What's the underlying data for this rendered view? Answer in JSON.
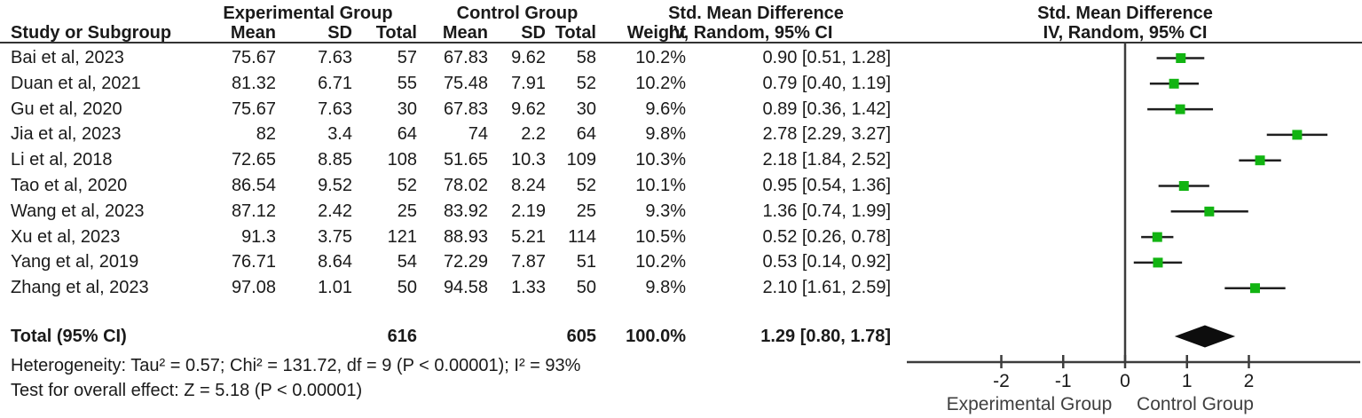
{
  "header": {
    "study_col": "Study or Subgroup",
    "group_experimental": "Experimental Group",
    "group_control": "Control Group",
    "mean": "Mean",
    "sd": "SD",
    "total": "Total",
    "weight": "Weight",
    "smd_title": "Std. Mean Difference",
    "smd_sub": "IV, Random, 95% CI",
    "plot_title": "Std. Mean Difference",
    "plot_sub": "IV, Random, 95% CI"
  },
  "rows": [
    {
      "study": "Bai et al, 2023",
      "e_mean": "75.67",
      "e_sd": "7.63",
      "e_total": "57",
      "c_mean": "67.83",
      "c_sd": "9.62",
      "c_total": "58",
      "weight": "10.2%",
      "ci": "0.90 [0.51, 1.28]"
    },
    {
      "study": "Duan et al, 2021",
      "e_mean": "81.32",
      "e_sd": "6.71",
      "e_total": "55",
      "c_mean": "75.48",
      "c_sd": "7.91",
      "c_total": "52",
      "weight": "10.2%",
      "ci": "0.79 [0.40, 1.19]"
    },
    {
      "study": "Gu et al, 2020",
      "e_mean": "75.67",
      "e_sd": "7.63",
      "e_total": "30",
      "c_mean": "67.83",
      "c_sd": "9.62",
      "c_total": "30",
      "weight": "9.6%",
      "ci": "0.89 [0.36, 1.42]"
    },
    {
      "study": "Jia et al, 2023",
      "e_mean": "82",
      "e_sd": "3.4",
      "e_total": "64",
      "c_mean": "74",
      "c_sd": "2.2",
      "c_total": "64",
      "weight": "9.8%",
      "ci": "2.78 [2.29, 3.27]"
    },
    {
      "study": "Li et al, 2018",
      "e_mean": "72.65",
      "e_sd": "8.85",
      "e_total": "108",
      "c_mean": "51.65",
      "c_sd": "10.3",
      "c_total": "109",
      "weight": "10.3%",
      "ci": "2.18 [1.84, 2.52]"
    },
    {
      "study": "Tao et al, 2020",
      "e_mean": "86.54",
      "e_sd": "9.52",
      "e_total": "52",
      "c_mean": "78.02",
      "c_sd": "8.24",
      "c_total": "52",
      "weight": "10.1%",
      "ci": "0.95 [0.54, 1.36]"
    },
    {
      "study": "Wang et al, 2023",
      "e_mean": "87.12",
      "e_sd": "2.42",
      "e_total": "25",
      "c_mean": "83.92",
      "c_sd": "2.19",
      "c_total": "25",
      "weight": "9.3%",
      "ci": "1.36 [0.74, 1.99]"
    },
    {
      "study": "Xu et al, 2023",
      "e_mean": "91.3",
      "e_sd": "3.75",
      "e_total": "121",
      "c_mean": "88.93",
      "c_sd": "5.21",
      "c_total": "114",
      "weight": "10.5%",
      "ci": "0.52 [0.26, 0.78]"
    },
    {
      "study": "Yang et al, 2019",
      "e_mean": "76.71",
      "e_sd": "8.64",
      "e_total": "54",
      "c_mean": "72.29",
      "c_sd": "7.87",
      "c_total": "51",
      "weight": "10.2%",
      "ci": "0.53 [0.14, 0.92]"
    },
    {
      "study": "Zhang et al, 2023",
      "e_mean": "97.08",
      "e_sd": "1.01",
      "e_total": "50",
      "c_mean": "94.58",
      "c_sd": "1.33",
      "c_total": "50",
      "weight": "9.8%",
      "ci": "2.10 [1.61, 2.59]"
    }
  ],
  "totals": {
    "label": "Total (95% CI)",
    "e_total": "616",
    "c_total": "605",
    "weight": "100.0%",
    "ci": "1.29 [0.80, 1.78]"
  },
  "footnotes": {
    "heterogeneity": "Heterogeneity: Tau² = 0.57; Chi² = 131.72, df = 9 (P < 0.00001); I² = 93%",
    "overall_effect": "Test for overall effect: Z = 5.18 (P < 0.00001)"
  },
  "chart_data": {
    "type": "forest",
    "effect_measure": "Std. Mean Difference",
    "model": "IV, Random, 95% CI",
    "studies": [
      "Bai et al, 2023",
      "Duan et al, 2021",
      "Gu et al, 2020",
      "Jia et al, 2023",
      "Li et al, 2018",
      "Tao et al, 2020",
      "Wang et al, 2023",
      "Xu et al, 2023",
      "Yang et al, 2019",
      "Zhang et al, 2023"
    ],
    "estimates": [
      0.9,
      0.79,
      0.89,
      2.78,
      2.18,
      0.95,
      1.36,
      0.52,
      0.53,
      2.1
    ],
    "ci_low": [
      0.51,
      0.4,
      0.36,
      2.29,
      1.84,
      0.54,
      0.74,
      0.26,
      0.14,
      1.61
    ],
    "ci_high": [
      1.28,
      1.19,
      1.42,
      3.27,
      2.52,
      1.36,
      1.99,
      0.78,
      0.92,
      2.59
    ],
    "weights_pct": [
      10.2,
      10.2,
      9.6,
      9.8,
      10.3,
      10.1,
      9.3,
      10.5,
      10.2,
      9.8
    ],
    "pooled": {
      "estimate": 1.29,
      "ci_low": 0.8,
      "ci_high": 1.78
    },
    "axis": {
      "ticks": [
        "-2",
        "-1",
        "0",
        "1",
        "2"
      ],
      "xlim": [
        -3.55,
        3.8
      ],
      "zero_line": true,
      "left_caption": "Experimental Group",
      "right_caption": "Control Group"
    },
    "totals": {
      "experimental_n": 616,
      "control_n": 605
    },
    "heterogeneity": {
      "tau2": 0.57,
      "chi2": 131.72,
      "df": 9,
      "p": "< 0.00001",
      "i2_pct": 93
    },
    "overall_effect": {
      "z": 5.18,
      "p": "< 0.00001"
    }
  },
  "colors": {
    "marker_green": "#12b412",
    "ci_line": "#1f1f1f",
    "axis_line": "#3c3c3c",
    "diamond": "#0d0d0d",
    "text": "#1a1a1a",
    "caption_text": "#3f3f3f"
  }
}
